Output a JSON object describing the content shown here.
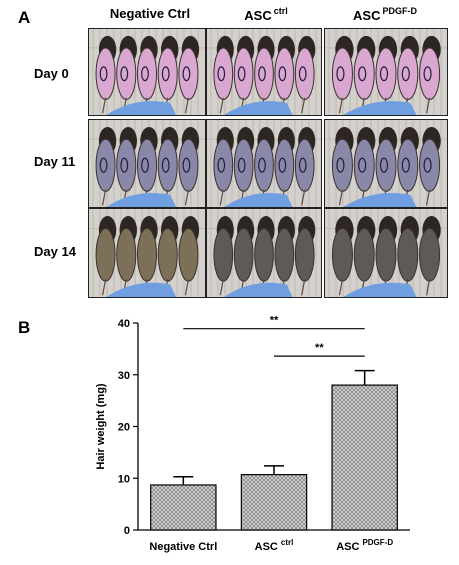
{
  "panel_a": {
    "label": "A",
    "columns": [
      {
        "main": "Negative Ctrl",
        "sup": ""
      },
      {
        "main": "ASC",
        "sup": "ctrl"
      },
      {
        "main": "ASC",
        "sup": "PDGF-D"
      }
    ],
    "rows": [
      "Day 0",
      "Day 11",
      "Day 14"
    ],
    "colors": {
      "glove": "#6f9fe0",
      "cage_bg": "#d4d1cc",
      "day0_skin": "#d9a7cf",
      "day11_skin": "#8a88a8",
      "day14_fur_negative": "#7d7058",
      "day14_fur_asc": "#5e5a58"
    }
  },
  "panel_b": {
    "label": "B",
    "significance": [
      {
        "from": 0,
        "to": 2,
        "text": "**"
      },
      {
        "from": 1,
        "to": 2,
        "text": "**"
      }
    ]
  },
  "chart_data": {
    "type": "bar",
    "categories": [
      "Negative Ctrl",
      "ASC ctrl",
      "ASC PDGF-D"
    ],
    "category_labels": [
      {
        "main": "Negative Ctrl",
        "sup": ""
      },
      {
        "main": "ASC",
        "sup": "ctrl"
      },
      {
        "main": "ASC",
        "sup": "PDGF-D"
      }
    ],
    "values": [
      8.7,
      10.7,
      28.0
    ],
    "errors": [
      1.6,
      1.7,
      2.8
    ],
    "ylabel": "Hair weight (mg)",
    "ylim": [
      0,
      40
    ],
    "yticks": [
      0,
      10,
      20,
      30,
      40
    ],
    "bar_fill": "crosshatch-gray",
    "grid": false
  }
}
